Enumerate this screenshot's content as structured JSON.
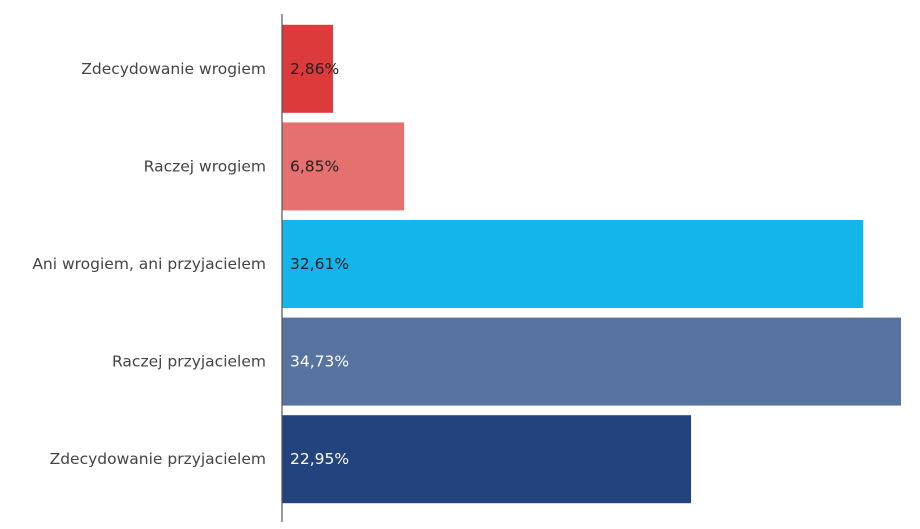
{
  "chart_data": {
    "type": "bar",
    "orientation": "horizontal",
    "categories": [
      "Zdecydowanie wrogiem",
      "Raczej wrogiem",
      "Ani wrogiem, ani przyjacielem",
      "Raczej przyjacielem",
      "Zdecydowanie przyjacielem"
    ],
    "values": [
      2.86,
      6.85,
      32.61,
      34.73,
      22.95
    ],
    "value_labels": [
      "2,86%",
      "6,85%",
      "32,61%",
      "34,73%",
      "22,95%"
    ],
    "colors": [
      "#dd3b3b",
      "#e57070",
      "#13b5ea",
      "#5773a0",
      "#22437d"
    ],
    "value_label_colors": [
      "#222222",
      "#222222",
      "#222222",
      "#ffffff",
      "#ffffff"
    ],
    "xlim": [
      0,
      34.73
    ],
    "title": "",
    "xlabel": "",
    "ylabel": "",
    "grid": false,
    "legend": "none"
  }
}
